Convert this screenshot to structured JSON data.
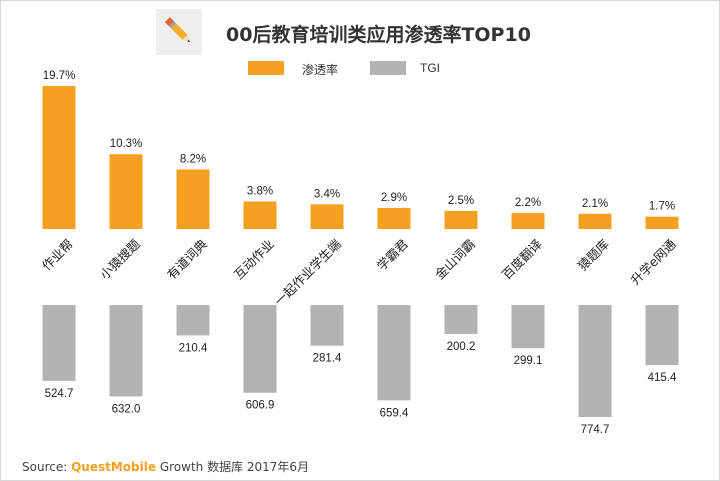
{
  "title": "00后教育培训类应用渗透率TOP10",
  "legend": [
    {
      "label": "渗透率",
      "color": "#f5a021"
    },
    {
      "label": "TGI",
      "color": "#b3b3b3"
    }
  ],
  "icon": "pencil-icon",
  "source": {
    "prefix": "Source:",
    "brand": "QuestMobile",
    "suffix": "Growth 数据库 2017年6月"
  },
  "chart_data": {
    "type": "bar",
    "categories": [
      "作业帮",
      "小猿搜题",
      "有道词典",
      "互动作业",
      "一起作业学生端",
      "学霸君",
      "金山词霸",
      "百度翻译",
      "猿题库",
      "升学e网通"
    ],
    "series": [
      {
        "name": "渗透率",
        "values": [
          19.7,
          10.3,
          8.2,
          3.8,
          3.4,
          2.9,
          2.5,
          2.2,
          2.1,
          1.7
        ],
        "labels": [
          "19.7%",
          "10.3%",
          "8.2%",
          "3.8%",
          "3.4%",
          "2.9%",
          "2.5%",
          "2.2%",
          "2.1%",
          "1.7%"
        ],
        "color": "#f5a021"
      },
      {
        "name": "TGI",
        "values": [
          524.7,
          632.0,
          210.4,
          606.9,
          281.4,
          659.4,
          200.2,
          299.1,
          774.7,
          415.4
        ],
        "labels": [
          "524.7",
          "632.0",
          "210.4",
          "606.9",
          "281.4",
          "659.4",
          "200.2",
          "299.1",
          "774.7",
          "415.4"
        ],
        "color": "#b3b3b3"
      }
    ],
    "xlabel": "",
    "ylabel": "",
    "grid": false,
    "legend_position": "top-center"
  }
}
